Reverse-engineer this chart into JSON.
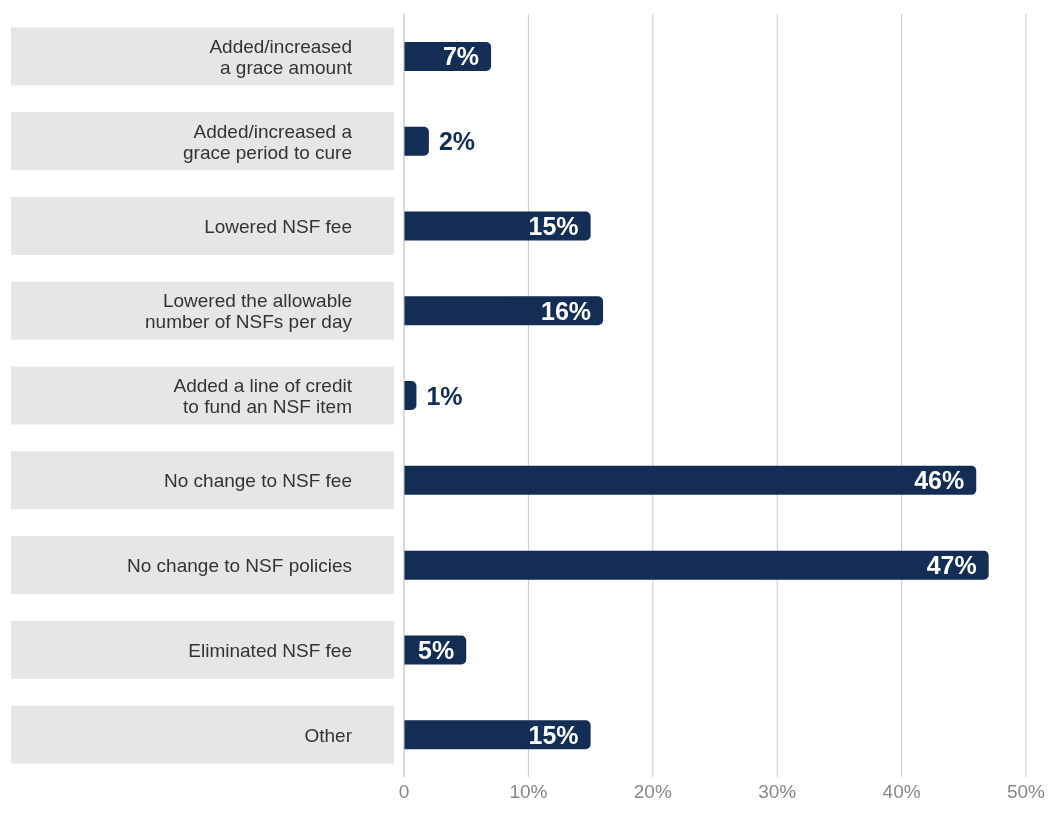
{
  "chart_data": {
    "type": "bar",
    "orientation": "horizontal",
    "categories": [
      "Added/increased a grace amount",
      "Added/increased a grace period to cure",
      "Lowered NSF fee",
      "Lowered the allowable number of NSFs per day",
      "Added a line of credit to fund an NSF item",
      "No change to NSF fee",
      "No change to NSF policies",
      "Eliminated NSF fee",
      "Other"
    ],
    "values": [
      7,
      2,
      15,
      16,
      1,
      46,
      47,
      5,
      15
    ],
    "value_labels": [
      "7%",
      "2%",
      "15%",
      "16%",
      "1%",
      "46%",
      "47%",
      "5%",
      "15%"
    ],
    "color": "#132d54",
    "xlim": [
      0,
      50
    ],
    "xticks": [
      0,
      {
        "value": 10,
        "label": "10%"
      },
      {
        "value": 20,
        "label": "20%"
      },
      {
        "value": 30,
        "label": "30%"
      },
      {
        "value": 40,
        "label": "40%"
      },
      {
        "value": 50,
        "label": "50%"
      }
    ],
    "grid": "x",
    "legend": false
  }
}
